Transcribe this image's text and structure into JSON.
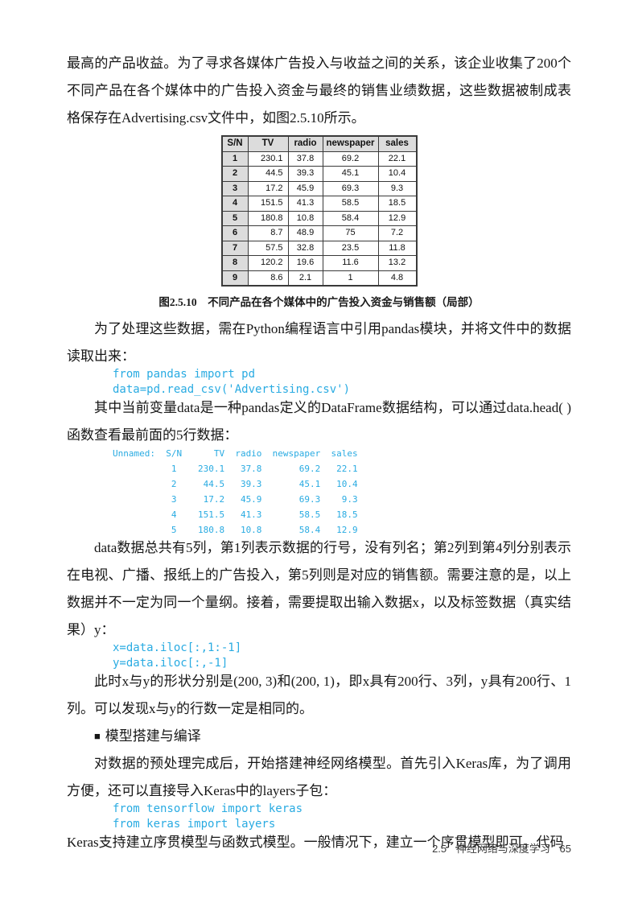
{
  "colors": {
    "code_text": "#29abe2",
    "table_header_bg": "#dcdcdc",
    "table_border": "#3a3a3a"
  },
  "paragraphs": {
    "p1": "最高的产品收益。为了寻求各媒体广告投入与收益之间的关系，该企业收集了200个不同产品在各个媒体中的广告投入资金与最终的销售业绩数据，这些数据被制成表格保存在Advertising.csv文件中，如图2.5.10所示。",
    "p2": "为了处理这些数据，需在Python编程语言中引用pandas模块，并将文件中的数据读取出来：",
    "p3": "其中当前变量data是一种pandas定义的DataFrame数据结构，可以通过data.head( )函数查看最前面的5行数据：",
    "p4": "data数据总共有5列，第1列表示数据的行号，没有列名；第2列到第4列分别表示在电视、广播、报纸上的广告投入，第5列则是对应的销售额。需要注意的是，以上数据并不一定为同一个量纲。接着，需要提取出输入数据x，以及标签数据（真实结果）y：",
    "p5": "此时x与y的形状分别是(200, 3)和(200, 1)，即x具有200行、3列，y具有200行、1列。可以发现x与y的行数一定是相同的。",
    "section_heading": {
      "bullet": "■",
      "text": "模型搭建与编译"
    },
    "p7": "对数据的预处理完成后，开始搭建神经网络模型。首先引入Keras库，为了调用方便，还可以直接导入Keras中的layers子包：",
    "p8": "Keras支持建立序贯模型与函数式模型。一般情况下，建立一个序贯模型即可，代码"
  },
  "figure": {
    "caption_label": "图2.5.10",
    "caption_text": "不同产品在各个媒体中的广告投入资金与销售额（局部）",
    "table": {
      "headers": [
        "S/N",
        "TV",
        "radio",
        "newspaper",
        "sales"
      ],
      "rows": [
        [
          "1",
          "230.1",
          "37.8",
          "69.2",
          "22.1"
        ],
        [
          "2",
          "44.5",
          "39.3",
          "45.1",
          "10.4"
        ],
        [
          "3",
          "17.2",
          "45.9",
          "69.3",
          "9.3"
        ],
        [
          "4",
          "151.5",
          "41.3",
          "58.5",
          "18.5"
        ],
        [
          "5",
          "180.8",
          "10.8",
          "58.4",
          "12.9"
        ],
        [
          "6",
          "8.7",
          "48.9",
          "75",
          "7.2"
        ],
        [
          "7",
          "57.5",
          "32.8",
          "23.5",
          "11.8"
        ],
        [
          "8",
          "120.2",
          "19.6",
          "11.6",
          "13.2"
        ],
        [
          "9",
          "8.6",
          "2.1",
          "1",
          "4.8"
        ]
      ]
    }
  },
  "code_blocks": {
    "import_pandas": [
      "from pandas import pd",
      "data=pd.read_csv('Advertising.csv')"
    ],
    "head_output": [
      "Unnamed:  S/N      TV  radio  newspaper  sales",
      "           1    230.1   37.8       69.2   22.1",
      "           2     44.5   39.3       45.1   10.4",
      "           3     17.2   45.9       69.3    9.3",
      "           4    151.5   41.3       58.5   18.5",
      "           5    180.8   10.8       58.4   12.9"
    ],
    "slice_xy": [
      "x=data.iloc[:,1:-1]",
      "y=data.iloc[:,-1]"
    ],
    "import_keras": [
      "from tensorflow import keras",
      "from keras import layers"
    ]
  },
  "footer": {
    "section_number": "2.5",
    "section_title": "神经网络与深度学习",
    "page_number": "65"
  }
}
